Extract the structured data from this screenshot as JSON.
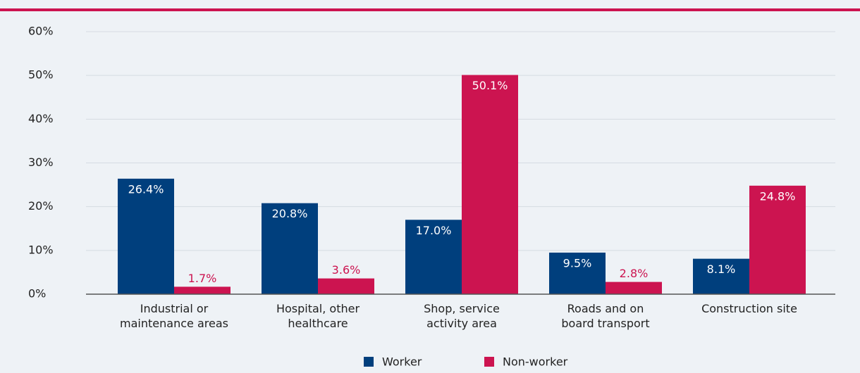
{
  "chart_data": {
    "type": "bar",
    "categories": [
      "Industrial or\nmaintenance areas",
      "Hospital, other\nhealthcare",
      "Shop, service\nactivity area",
      "Roads and on\nboard transport",
      "Construction site"
    ],
    "series": [
      {
        "name": "Worker",
        "color": "#003f7d",
        "values": [
          26.4,
          20.8,
          17.0,
          9.5,
          8.1
        ],
        "value_labels": [
          "26.4%",
          "20.8%",
          "17.0%",
          "9.5%",
          "8.1%"
        ]
      },
      {
        "name": "Non-worker",
        "color": "#cc1450",
        "values": [
          1.7,
          3.6,
          50.1,
          2.8,
          24.8
        ],
        "value_labels": [
          "1.7%",
          "3.6%",
          "50.1%",
          "2.8%",
          "24.8%"
        ]
      }
    ],
    "ylim": [
      0,
      60
    ],
    "yticks": [
      {
        "value": 0,
        "label": "0%"
      },
      {
        "value": 10,
        "label": "10%"
      },
      {
        "value": 20,
        "label": "20%"
      },
      {
        "value": 30,
        "label": "30%"
      },
      {
        "value": 40,
        "label": "40%"
      },
      {
        "value": 50,
        "label": "50%"
      },
      {
        "value": 60,
        "label": "60%"
      }
    ],
    "grid": true,
    "legend": "bottom"
  }
}
